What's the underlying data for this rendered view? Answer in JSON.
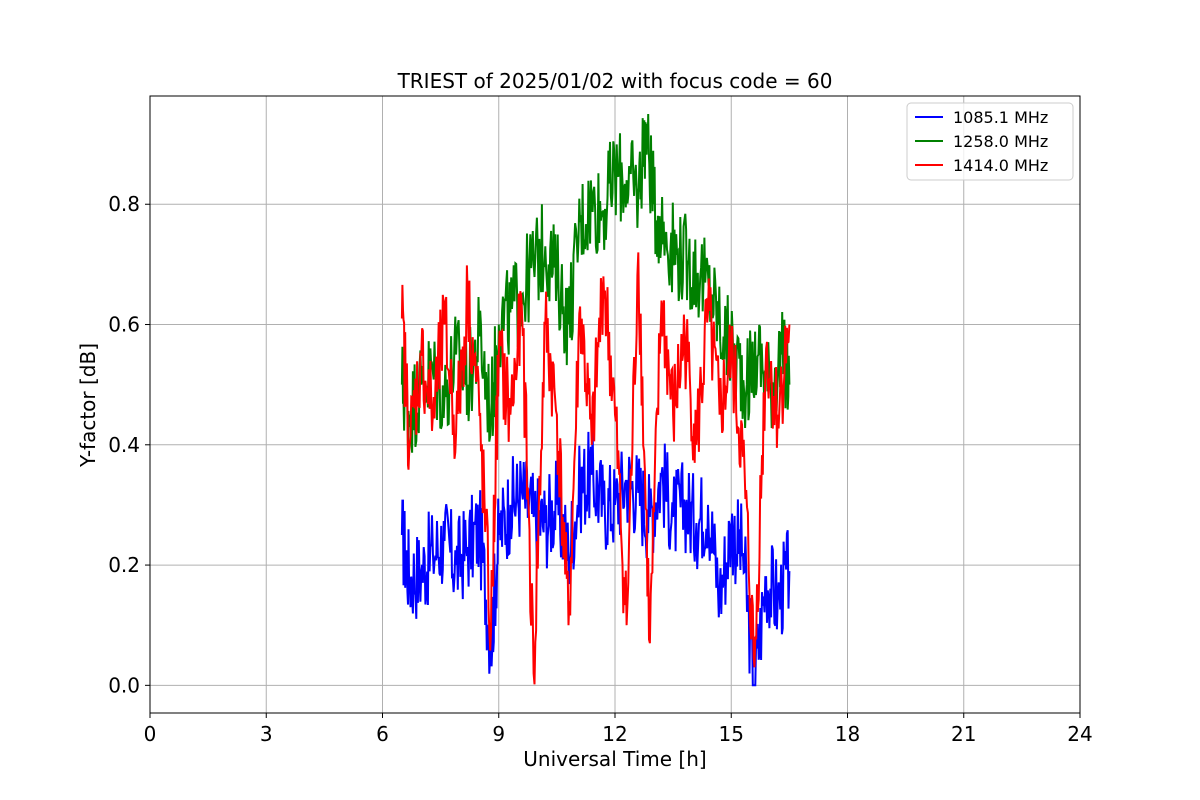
{
  "chart_data": {
    "type": "line",
    "title": "TRIEST of 2025/01/02 with focus code = 60",
    "xlabel": "Universal Time [h]",
    "ylabel": "Y-factor [dB]",
    "xlim": [
      0,
      24
    ],
    "ylim": [
      -0.046,
      0.98
    ],
    "xticks": [
      0,
      3,
      6,
      9,
      12,
      15,
      18,
      21,
      24
    ],
    "yticks": [
      0.0,
      0.2,
      0.4,
      0.6,
      0.8
    ],
    "xtick_labels": [
      "0",
      "3",
      "6",
      "9",
      "12",
      "15",
      "18",
      "21",
      "24"
    ],
    "ytick_labels": [
      "0.0",
      "0.2",
      "0.4",
      "0.6",
      "0.8"
    ],
    "grid": true,
    "legend_position": "top-right",
    "series": [
      {
        "name": "1085.1 MHz",
        "color": "#0000ff",
        "x": [
          6.5,
          6.7,
          7.0,
          7.3,
          7.6,
          7.9,
          8.2,
          8.5,
          8.8,
          9.0,
          9.3,
          9.6,
          9.9,
          10.2,
          10.5,
          10.8,
          11.1,
          11.4,
          11.7,
          12.0,
          12.3,
          12.6,
          12.9,
          13.2,
          13.5,
          13.8,
          14.1,
          14.4,
          14.7,
          15.0,
          15.3,
          15.6,
          15.9,
          16.2,
          16.5
        ],
        "values": [
          0.25,
          0.18,
          0.19,
          0.22,
          0.24,
          0.2,
          0.23,
          0.26,
          0.07,
          0.25,
          0.3,
          0.32,
          0.28,
          0.27,
          0.3,
          0.22,
          0.33,
          0.35,
          0.3,
          0.3,
          0.34,
          0.32,
          0.28,
          0.35,
          0.28,
          0.3,
          0.27,
          0.3,
          0.15,
          0.26,
          0.22,
          0.0,
          0.18,
          0.14,
          0.19
        ]
      },
      {
        "name": "1258.0 MHz",
        "color": "#008000",
        "x": [
          6.5,
          6.7,
          7.0,
          7.3,
          7.6,
          7.9,
          8.2,
          8.5,
          8.8,
          9.0,
          9.3,
          9.6,
          9.9,
          10.2,
          10.5,
          10.8,
          11.1,
          11.4,
          11.7,
          12.0,
          12.3,
          12.6,
          12.8,
          13.0,
          13.3,
          13.6,
          13.9,
          14.2,
          14.5,
          14.8,
          15.1,
          15.4,
          15.7,
          16.0,
          16.3,
          16.5
        ],
        "values": [
          0.5,
          0.45,
          0.5,
          0.52,
          0.48,
          0.55,
          0.5,
          0.58,
          0.45,
          0.6,
          0.62,
          0.65,
          0.7,
          0.73,
          0.68,
          0.6,
          0.77,
          0.8,
          0.79,
          0.85,
          0.84,
          0.82,
          0.93,
          0.8,
          0.75,
          0.72,
          0.7,
          0.68,
          0.65,
          0.58,
          0.55,
          0.5,
          0.55,
          0.5,
          0.55,
          0.5
        ]
      },
      {
        "name": "1414.0 MHz",
        "color": "#ff0000",
        "x": [
          6.5,
          6.7,
          7.0,
          7.3,
          7.6,
          7.9,
          8.2,
          8.5,
          8.8,
          9.0,
          9.3,
          9.6,
          9.9,
          10.2,
          10.5,
          10.8,
          11.1,
          11.4,
          11.7,
          12.0,
          12.3,
          12.6,
          12.9,
          13.2,
          13.5,
          13.8,
          14.1,
          14.4,
          14.7,
          15.0,
          15.3,
          15.6,
          15.9,
          16.2,
          16.5
        ],
        "values": [
          0.61,
          0.4,
          0.55,
          0.45,
          0.6,
          0.42,
          0.65,
          0.45,
          0.09,
          0.55,
          0.45,
          0.62,
          0.02,
          0.6,
          0.45,
          0.1,
          0.63,
          0.4,
          0.68,
          0.45,
          0.1,
          0.72,
          0.07,
          0.64,
          0.45,
          0.58,
          0.4,
          0.62,
          0.45,
          0.55,
          0.38,
          0.03,
          0.56,
          0.45,
          0.6
        ]
      }
    ]
  }
}
